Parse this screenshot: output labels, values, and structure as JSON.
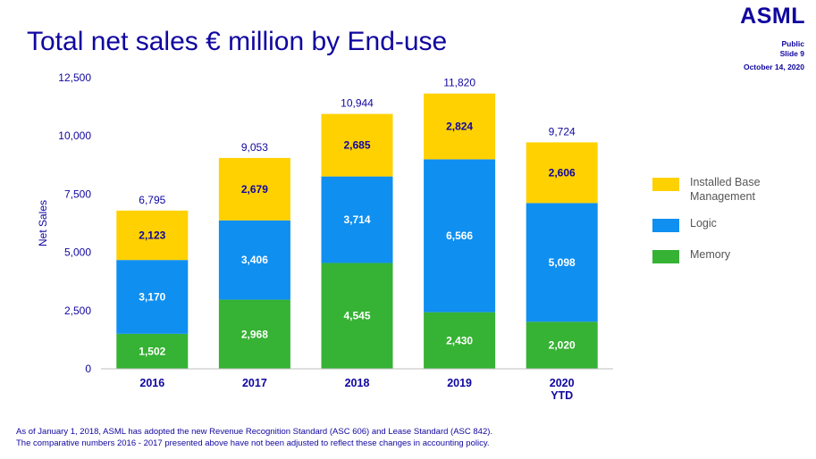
{
  "header": {
    "title": "Total net sales € million by End-use",
    "logo_text": "ASML",
    "classification": "Public",
    "slide": "Slide 9",
    "date": "October 14, 2020"
  },
  "footnotes": [
    "As of January 1, 2018, ASML has adopted the new Revenue Recognition Standard (ASC 606) and Lease Standard (ASC 842).",
    "The comparative numbers 2016 - 2017 presented above have not been adjusted to reflect these changes in accounting policy."
  ],
  "colors": {
    "installed_base": "#ffd100",
    "logic": "#0f8ff0",
    "memory": "#36b234",
    "title": "#10069f"
  },
  "chart_data": {
    "type": "bar",
    "stacked": true,
    "title": "",
    "xlabel": "",
    "ylabel": "Net Sales",
    "ylim": [
      0,
      12500
    ],
    "y_ticks": [
      "0",
      "2,500",
      "5,000",
      "7,500",
      "10,000",
      "12,500"
    ],
    "categories": [
      "2016",
      "2017",
      "2018",
      "2019",
      "2020\nYTD"
    ],
    "series": [
      {
        "name": "Memory",
        "color": "#36b234",
        "values": [
          1502,
          2968,
          4545,
          2430,
          2020
        ],
        "labels": [
          "1,502",
          "2,968",
          "4,545",
          "2,430",
          "2,020"
        ]
      },
      {
        "name": "Logic",
        "color": "#0f8ff0",
        "values": [
          3170,
          3406,
          3714,
          6566,
          5098
        ],
        "labels": [
          "3,170",
          "3,406",
          "3,714",
          "6,566",
          "5,098"
        ]
      },
      {
        "name": "Installed Base Management",
        "color": "#ffd100",
        "values": [
          2123,
          2679,
          2685,
          2824,
          2606
        ],
        "labels": [
          "2,123",
          "2,679",
          "2,685",
          "2,824",
          "2,606"
        ]
      }
    ],
    "totals": [
      6795,
      9053,
      10944,
      11820,
      9724
    ],
    "total_labels": [
      "6,795",
      "9,053",
      "10,944",
      "11,820",
      "9,724"
    ],
    "legend": {
      "position": "right",
      "items": [
        "Installed Base Management",
        "Logic",
        "Memory"
      ]
    },
    "grid": false
  }
}
